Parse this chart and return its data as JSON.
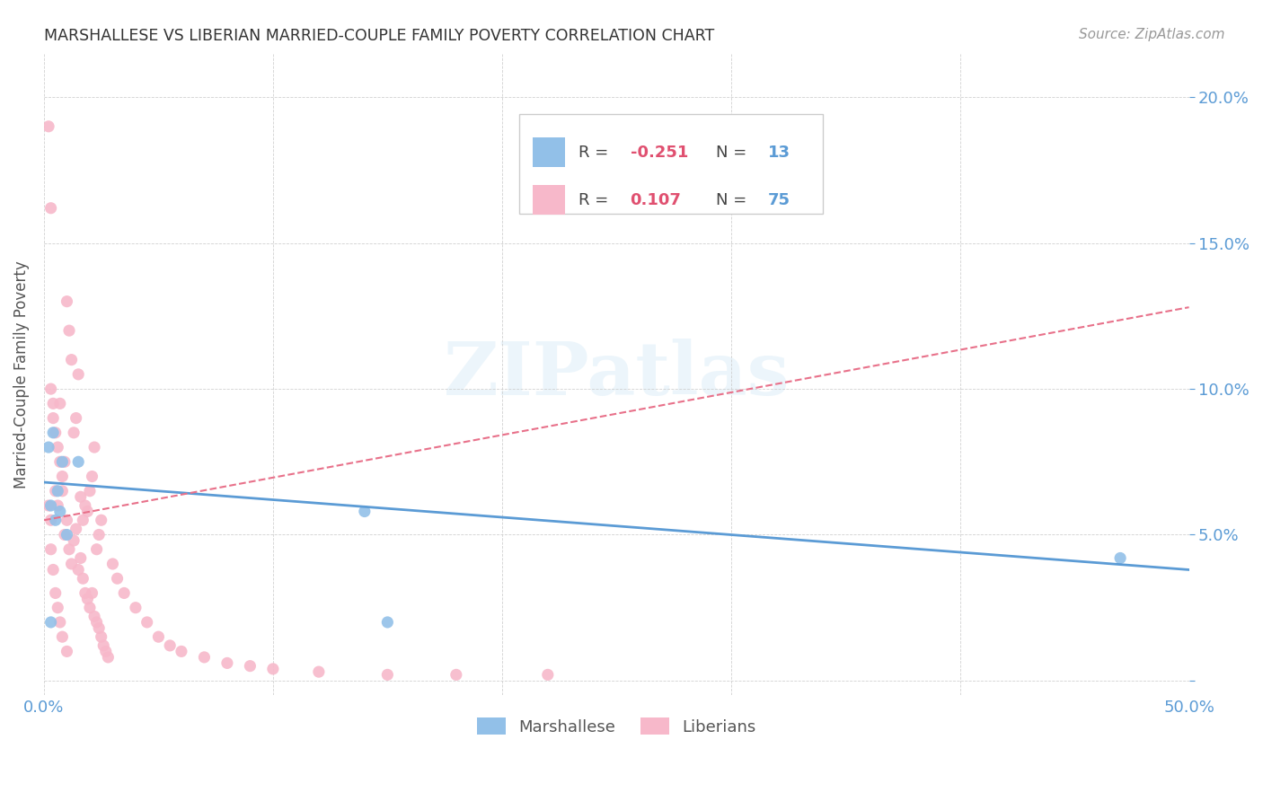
{
  "title": "MARSHALLESE VS LIBERIAN MARRIED-COUPLE FAMILY POVERTY CORRELATION CHART",
  "source": "Source: ZipAtlas.com",
  "ylabel": "Married-Couple Family Poverty",
  "xlim": [
    0.0,
    0.5
  ],
  "ylim": [
    -0.005,
    0.215
  ],
  "yticks": [
    0.0,
    0.05,
    0.1,
    0.15,
    0.2
  ],
  "xticks": [
    0.0,
    0.1,
    0.2,
    0.3,
    0.4,
    0.5
  ],
  "marshallese_color": "#92c0e8",
  "liberian_color": "#f7b8ca",
  "trend_marshallese_color": "#5b9bd5",
  "trend_liberian_color": "#e8718a",
  "tick_color": "#5b9bd5",
  "marshallese_x": [
    0.002,
    0.003,
    0.004,
    0.005,
    0.006,
    0.007,
    0.008,
    0.01,
    0.015,
    0.14,
    0.15,
    0.47,
    0.003
  ],
  "marshallese_y": [
    0.08,
    0.06,
    0.085,
    0.055,
    0.065,
    0.058,
    0.075,
    0.05,
    0.075,
    0.058,
    0.02,
    0.042,
    0.02
  ],
  "liberian_x": [
    0.002,
    0.003,
    0.004,
    0.005,
    0.006,
    0.007,
    0.008,
    0.009,
    0.01,
    0.011,
    0.012,
    0.013,
    0.014,
    0.015,
    0.016,
    0.017,
    0.018,
    0.019,
    0.02,
    0.021,
    0.022,
    0.023,
    0.024,
    0.025,
    0.003,
    0.004,
    0.005,
    0.006,
    0.007,
    0.008,
    0.009,
    0.01,
    0.011,
    0.012,
    0.013,
    0.014,
    0.015,
    0.016,
    0.017,
    0.018,
    0.019,
    0.02,
    0.021,
    0.022,
    0.023,
    0.024,
    0.025,
    0.026,
    0.027,
    0.028,
    0.03,
    0.032,
    0.035,
    0.04,
    0.045,
    0.05,
    0.055,
    0.06,
    0.07,
    0.08,
    0.09,
    0.1,
    0.12,
    0.15,
    0.18,
    0.22,
    0.002,
    0.003,
    0.003,
    0.004,
    0.005,
    0.006,
    0.007,
    0.008,
    0.01
  ],
  "liberian_y": [
    0.19,
    0.162,
    0.09,
    0.065,
    0.08,
    0.095,
    0.07,
    0.075,
    0.13,
    0.12,
    0.11,
    0.085,
    0.09,
    0.105,
    0.063,
    0.055,
    0.06,
    0.058,
    0.065,
    0.07,
    0.08,
    0.045,
    0.05,
    0.055,
    0.1,
    0.095,
    0.085,
    0.06,
    0.075,
    0.065,
    0.05,
    0.055,
    0.045,
    0.04,
    0.048,
    0.052,
    0.038,
    0.042,
    0.035,
    0.03,
    0.028,
    0.025,
    0.03,
    0.022,
    0.02,
    0.018,
    0.015,
    0.012,
    0.01,
    0.008,
    0.04,
    0.035,
    0.03,
    0.025,
    0.02,
    0.015,
    0.012,
    0.01,
    0.008,
    0.006,
    0.005,
    0.004,
    0.003,
    0.002,
    0.002,
    0.002,
    0.06,
    0.055,
    0.045,
    0.038,
    0.03,
    0.025,
    0.02,
    0.015,
    0.01
  ],
  "marsh_trend_x0": 0.0,
  "marsh_trend_x1": 0.5,
  "marsh_trend_y0": 0.068,
  "marsh_trend_y1": 0.038,
  "lib_trend_x0": 0.0,
  "lib_trend_x1": 0.5,
  "lib_trend_y0": 0.055,
  "lib_trend_y1": 0.128,
  "legend_r1": "R = ",
  "legend_rv1": "-0.251",
  "legend_n1": "N = ",
  "legend_nv1": "13",
  "legend_r2": "R = ",
  "legend_rv2": "0.107",
  "legend_n2": "N = ",
  "legend_nv2": "75",
  "watermark_text": "ZIPatlas",
  "label_marshallese": "Marshallese",
  "label_liberians": "Liberians"
}
